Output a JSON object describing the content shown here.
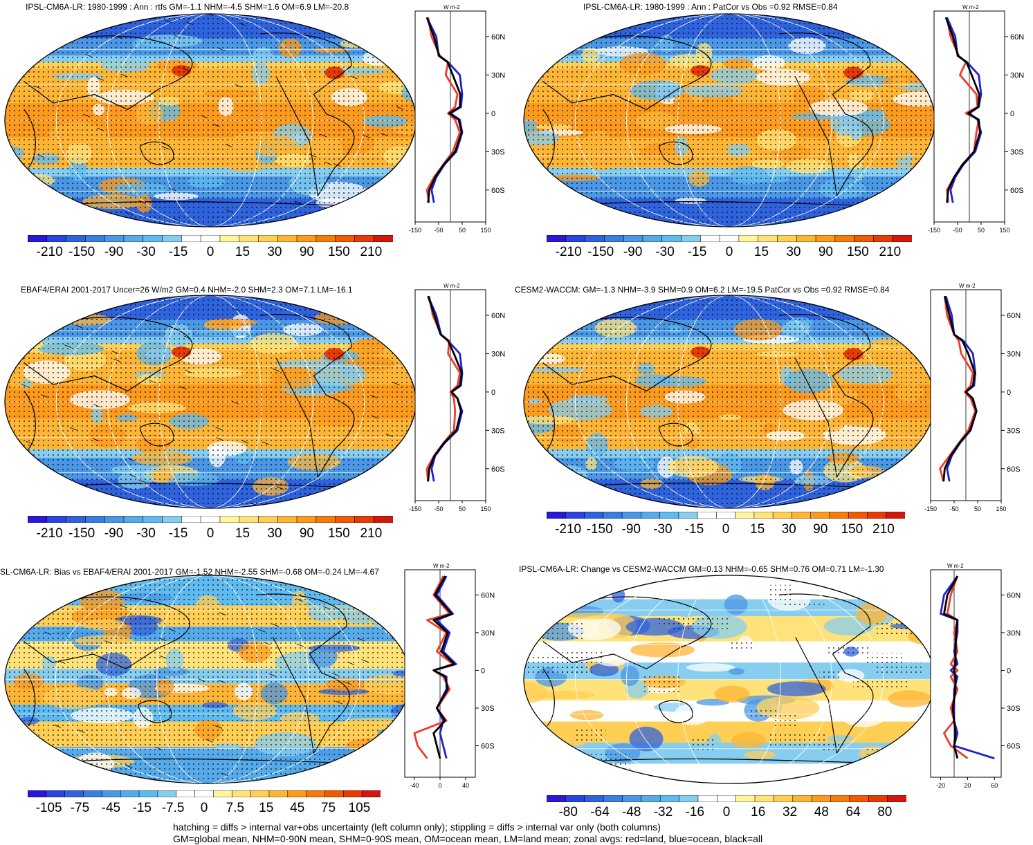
{
  "panels": [
    {
      "id": "p1",
      "title": "IPSL-CM6A-LR: 1980-1999 : Ann : rtfs GM=-1.1 NHM=-4.5 SHM=1.6 OM=6.9 LM=-20.8",
      "hatch": true,
      "style": "flux",
      "cbar": {
        "labels": [
          "-210",
          "-150",
          "-90",
          "-30",
          "-15",
          "0",
          "15",
          "30",
          "90",
          "150",
          "210"
        ]
      },
      "zonal": {
        "unit": "W m-2",
        "xticks": [
          "-150",
          "-50",
          "50",
          "150"
        ],
        "yticks": [
          "60N",
          "30N",
          "0",
          "30S",
          "60S"
        ]
      }
    },
    {
      "id": "p2",
      "title": "IPSL-CM6A-LR: 1980-1999 : Ann : PatCor vs Obs =0.92 RMSE=0.84",
      "hatch": false,
      "style": "flux",
      "cbar": {
        "labels": [
          "-210",
          "-150",
          "-90",
          "-30",
          "-15",
          "0",
          "15",
          "30",
          "90",
          "150",
          "210"
        ]
      },
      "zonal": {
        "unit": "W m-2",
        "xticks": [
          "-150",
          "-50",
          "50",
          "150"
        ],
        "yticks": [
          "60N",
          "30N",
          "0",
          "30S",
          "60S"
        ]
      }
    },
    {
      "id": "p3",
      "title": "EBAF4/ERAI 2001-2017 Uncer=26 W/m2 GM=0.4 NHM=-2.0 SHM=2.3 OM=7.1 LM=-16.1",
      "hatch": true,
      "style": "flux",
      "cbar": {
        "labels": [
          "-210",
          "-150",
          "-90",
          "-30",
          "-15",
          "0",
          "15",
          "30",
          "90",
          "150",
          "210"
        ]
      },
      "zonal": {
        "unit": "W m-2",
        "xticks": [
          "-150",
          "-50",
          "50",
          "150"
        ],
        "yticks": [
          "60N",
          "30N",
          "0",
          "30S",
          "60S"
        ]
      }
    },
    {
      "id": "p4",
      "title": "CESM2-WACCM: GM=-1.3 NHM=-3.9 SHM=0.9 OM=6.2 LM=-19.5 PatCor vs Obs =0.92 RMSE=0.84",
      "hatch": false,
      "style": "flux",
      "cbar": {
        "labels": [
          "-210",
          "-150",
          "-90",
          "-30",
          "-15",
          "0",
          "15",
          "30",
          "90",
          "150",
          "210"
        ]
      },
      "zonal": {
        "unit": "W m-2",
        "xticks": [
          "-150",
          "-50",
          "50",
          "150"
        ],
        "yticks": [
          "60N",
          "30N",
          "0",
          "30S",
          "60S"
        ]
      }
    },
    {
      "id": "p5",
      "title": "SL-CM6A-LR: Bias vs EBAF4/ERAI 2001-2017 GM=-1.52 NHM=-2.55 SHM=-0.68 OM=-0.24 LM=-4.67",
      "hatch": true,
      "style": "bias",
      "cbar": {
        "labels": [
          "-105",
          "-75",
          "-45",
          "-15",
          "-7.5",
          "0",
          "7.5",
          "15",
          "45",
          "75",
          "105"
        ]
      },
      "zonal": {
        "unit": "W m-2",
        "xticks": [
          "-40",
          "0",
          "40"
        ],
        "yticks": [
          "60N",
          "30N",
          "0",
          "30S",
          "60S"
        ]
      }
    },
    {
      "id": "p6",
      "title": "IPSL-CM6A-LR: Change vs CESM2-WACCM GM=0.13 NHM=-0.65 SHM=0.76 OM=0.71 LM=-1.30",
      "hatch": false,
      "style": "change",
      "cbar": {
        "labels": [
          "-80",
          "-64",
          "-48",
          "-32",
          "-16",
          "0",
          "16",
          "32",
          "48",
          "64",
          "80"
        ]
      },
      "zonal": {
        "unit": "W m-2",
        "xticks": [
          "-20",
          "20",
          "60"
        ],
        "yticks": [
          "60N",
          "30N",
          "0",
          "30S",
          "60S"
        ]
      }
    }
  ],
  "colors": {
    "cmap": [
      "#2a18d6",
      "#2b44e0",
      "#2f63de",
      "#3a7fe0",
      "#4a97e6",
      "#56aaea",
      "#5fbaf0",
      "#86cdf0",
      "#ffffff",
      "#ffffff",
      "#fff59e",
      "#ffe37a",
      "#ffce55",
      "#fdb535",
      "#fb9a1c",
      "#f57c0b",
      "#ee5a05",
      "#e63a07",
      "#d4160e"
    ],
    "land": "#ef3b2c",
    "ocean": "#1f1fd6",
    "all": "#000000"
  },
  "chart_data": [
    {
      "type": "heatmap",
      "panel": "p1",
      "colorbar_levels": [
        -210,
        -150,
        -90,
        -30,
        -15,
        0,
        15,
        30,
        90,
        150,
        210
      ],
      "zonal_mean": {
        "lat": [
          75,
          60,
          45,
          40,
          30,
          15,
          5,
          0,
          -5,
          -15,
          -30,
          -40,
          -50,
          -60,
          -70
        ],
        "land": [
          -95,
          -80,
          -45,
          -10,
          -20,
          30,
          20,
          -10,
          20,
          40,
          10,
          -30,
          -70,
          -100,
          -90
        ],
        "ocean": [
          -100,
          -60,
          -50,
          -10,
          40,
          50,
          45,
          0,
          40,
          50,
          25,
          -25,
          -60,
          -80,
          -70
        ],
        "all": [
          -100,
          -70,
          -48,
          -12,
          10,
          42,
          40,
          -5,
          35,
          48,
          20,
          -28,
          -65,
          -90,
          -95
        ]
      }
    },
    {
      "type": "heatmap",
      "panel": "p2",
      "colorbar_levels": [
        -210,
        -150,
        -90,
        -30,
        -15,
        0,
        15,
        30,
        90,
        150,
        210
      ],
      "zonal_mean": {
        "lat": [
          75,
          60,
          45,
          40,
          30,
          15,
          5,
          0,
          -5,
          -15,
          -30,
          -40,
          -50,
          -60,
          -70
        ],
        "land": [
          -95,
          -80,
          -45,
          -15,
          -40,
          30,
          35,
          -15,
          40,
          30,
          20,
          -30,
          -65,
          -95,
          -90
        ],
        "ocean": [
          -95,
          -60,
          -50,
          -10,
          40,
          50,
          40,
          0,
          35,
          50,
          25,
          -25,
          -60,
          -80,
          -70
        ],
        "all": [
          -100,
          -70,
          -48,
          -12,
          10,
          42,
          38,
          -5,
          40,
          45,
          20,
          -28,
          -65,
          -90,
          -95
        ]
      }
    },
    {
      "type": "heatmap",
      "panel": "p3",
      "colorbar_levels": [
        -210,
        -150,
        -90,
        -30,
        -15,
        0,
        15,
        30,
        90,
        150,
        210
      ],
      "zonal_mean": {
        "lat": [
          75,
          60,
          45,
          40,
          30,
          15,
          5,
          0,
          -5,
          -15,
          -30,
          -40,
          -50,
          -60,
          -70
        ],
        "land": [
          -90,
          -75,
          -40,
          -5,
          -10,
          40,
          30,
          0,
          15,
          20,
          15,
          -30,
          -70,
          -100,
          -95
        ],
        "ocean": [
          -95,
          -60,
          -40,
          -10,
          40,
          50,
          45,
          5,
          30,
          50,
          30,
          -25,
          -65,
          -80,
          -70
        ],
        "all": [
          -95,
          -68,
          -42,
          -10,
          15,
          48,
          40,
          5,
          30,
          45,
          25,
          -28,
          -68,
          -90,
          -95
        ]
      }
    },
    {
      "type": "heatmap",
      "panel": "p4",
      "colorbar_levels": [
        -210,
        -150,
        -90,
        -30,
        -15,
        0,
        15,
        30,
        90,
        150,
        210
      ],
      "zonal_mean": {
        "lat": [
          75,
          60,
          45,
          40,
          30,
          15,
          5,
          0,
          -5,
          -15,
          -30,
          -40,
          -50,
          -60,
          -70
        ],
        "land": [
          -90,
          -80,
          -50,
          -30,
          -20,
          30,
          20,
          -5,
          20,
          40,
          10,
          -30,
          -70,
          -110,
          -95
        ],
        "ocean": [
          -85,
          -60,
          -50,
          -10,
          30,
          40,
          35,
          0,
          30,
          45,
          20,
          -25,
          -60,
          -80,
          -70
        ],
        "all": [
          -90,
          -70,
          -50,
          -15,
          10,
          38,
          30,
          0,
          28,
          45,
          18,
          -28,
          -65,
          -90,
          -95
        ]
      }
    },
    {
      "type": "heatmap",
      "panel": "p5",
      "colorbar_levels": [
        -105,
        -75,
        -45,
        -15,
        -7.5,
        0,
        7.5,
        15,
        45,
        75,
        105
      ],
      "zonal_mean": {
        "lat": [
          75,
          60,
          45,
          40,
          30,
          15,
          5,
          0,
          -5,
          -15,
          -30,
          -40,
          -50,
          -60,
          -70
        ],
        "land": [
          5,
          -10,
          15,
          -20,
          10,
          -5,
          20,
          -10,
          5,
          15,
          -5,
          10,
          -40,
          -35,
          -20
        ],
        "ocean": [
          10,
          -5,
          20,
          -5,
          15,
          5,
          25,
          -10,
          10,
          10,
          -5,
          5,
          0,
          5,
          10
        ],
        "all": [
          8,
          -8,
          18,
          -10,
          12,
          2,
          22,
          -10,
          8,
          12,
          -5,
          8,
          -10,
          -5,
          0
        ]
      }
    },
    {
      "type": "heatmap",
      "panel": "p6",
      "colorbar_levels": [
        -80,
        -64,
        -48,
        -32,
        -16,
        0,
        16,
        32,
        48,
        64,
        80
      ],
      "zonal_mean": {
        "lat": [
          75,
          60,
          45,
          40,
          30,
          15,
          5,
          0,
          -5,
          -15,
          -30,
          -40,
          -50,
          -60,
          -70
        ],
        "land": [
          5,
          -5,
          -10,
          5,
          0,
          5,
          -5,
          5,
          -5,
          5,
          -5,
          0,
          -15,
          -5,
          20
        ],
        "ocean": [
          5,
          -15,
          -20,
          5,
          5,
          0,
          5,
          -5,
          5,
          0,
          0,
          0,
          5,
          0,
          60
        ],
        "all": [
          5,
          -10,
          -15,
          5,
          3,
          2,
          2,
          0,
          2,
          2,
          -2,
          0,
          2,
          0,
          5
        ]
      }
    }
  ],
  "footer": {
    "line1": "hatching = diffs > internal var+obs uncertainty (left column only); stippling = diffs > internal var only (both columns)",
    "line2": "GM=global mean, NHM=0-90N mean, SHM=0-90S mean, OM=ocean mean, LM=land mean; zonal avgs: red=land, blue=ocean, black=all"
  }
}
